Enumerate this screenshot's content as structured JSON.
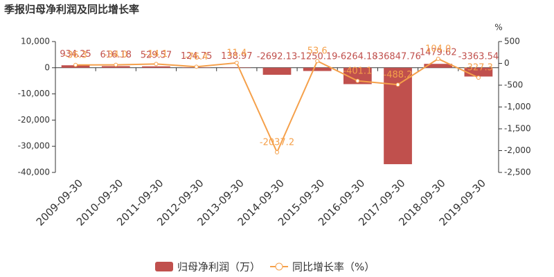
{
  "chart_data": {
    "type": "bar-line",
    "title": "季报归母净利润及同比增长率",
    "y2_label": "%",
    "categories": [
      "2009-09-30",
      "2010-09-30",
      "2011-09-30",
      "2012-09-30",
      "2013-09-30",
      "2014-09-30",
      "2015-09-30",
      "2016-09-30",
      "2017-09-30",
      "2018-09-30",
      "2019-09-30"
    ],
    "series": [
      {
        "name": "归母净利润（万）",
        "type": "bar",
        "color": "#c0504d",
        "values": [
          934.25,
          616.18,
          529.57,
          124.75,
          138.97,
          -2692.13,
          -1250.19,
          -6264.18,
          -36847.76,
          1479.62,
          -3363.54
        ]
      },
      {
        "name": "同比增长率（%）",
        "type": "line",
        "axis": "y2",
        "color": "#f5a04a",
        "values": [
          -36.3,
          -34.0,
          -14.1,
          -76.4,
          11.4,
          -2037.2,
          53.6,
          -401.1,
          -488.2,
          104.0,
          -327.3
        ],
        "value_labels": [
          "-36.3",
          "-34.0",
          "-14.1",
          "-76.4",
          "11.4",
          "-2037.2",
          "53.6",
          "-401.1",
          "-488.2",
          "104.0",
          "-327.3"
        ]
      }
    ],
    "ylim": [
      -40000,
      10000
    ],
    "yticks": [
      {
        "value": 10000,
        "label": "10,000"
      },
      0,
      {
        "value": -10000,
        "label": "-10,000"
      },
      {
        "value": -20000,
        "label": "-20,000"
      },
      {
        "value": -30000,
        "label": "-30,000"
      },
      {
        "value": -40000,
        "label": "-40,000"
      }
    ],
    "y2lim": [
      -2500,
      500
    ],
    "y2ticks": [
      500,
      0,
      -500,
      {
        "value": -1000,
        "label": "-1,000"
      },
      {
        "value": -1500,
        "label": "-1,500"
      },
      {
        "value": -2000,
        "label": "-2,000"
      },
      {
        "value": -2500,
        "label": "-2,500"
      }
    ],
    "legend": "bottom"
  }
}
